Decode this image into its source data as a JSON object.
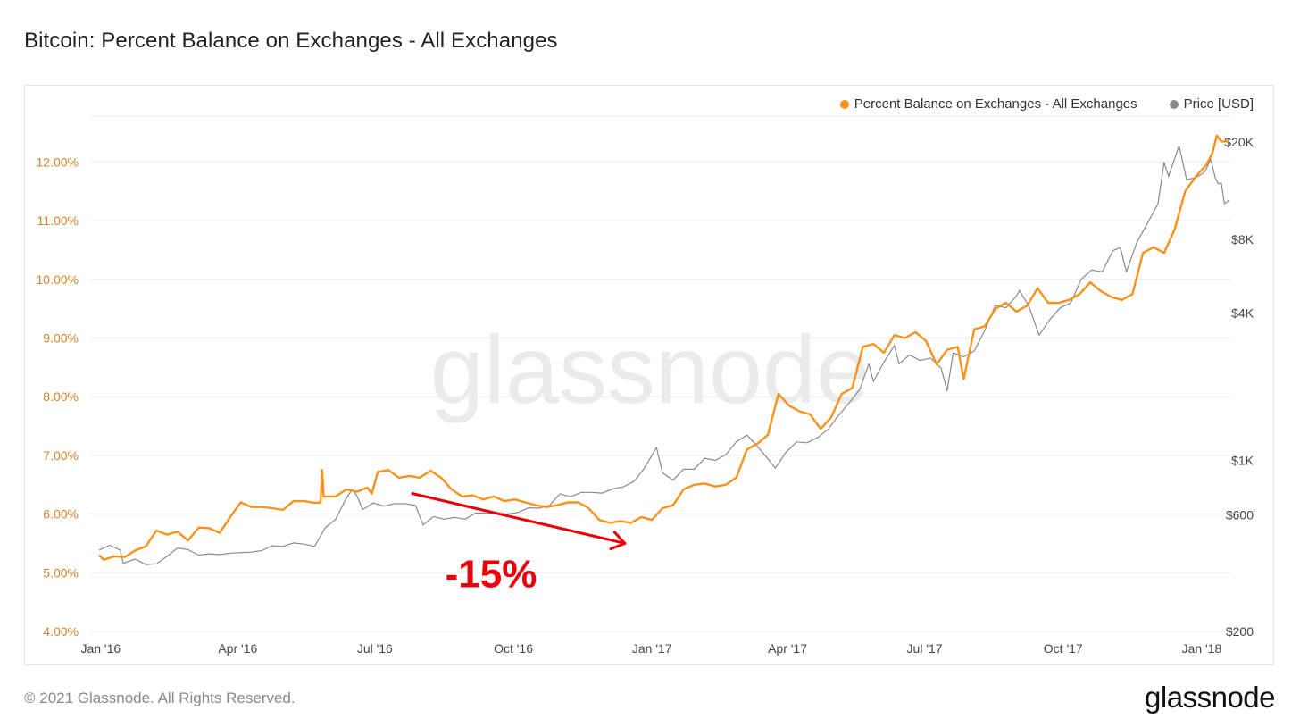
{
  "title": "Bitcoin: Percent Balance on Exchanges - All Exchanges",
  "footer": {
    "copyright": "© 2021 Glassnode. All Rights Reserved.",
    "logo": "glassnode"
  },
  "watermark": "glassnode",
  "annotation": {
    "text": "-15%",
    "color": "#e8000b"
  },
  "colors": {
    "exchange_balance": "#f7931a",
    "price": "#8a8a8a",
    "left_axis_text": "#d4822a",
    "right_axis_text": "#444444",
    "grid": "#ececec",
    "watermark": "#ebebeb"
  },
  "legend": [
    {
      "label": "Percent Balance on Exchanges - All Exchanges",
      "color": "#f7931a"
    },
    {
      "label": "Price [USD]",
      "color": "#8a8a8a"
    }
  ],
  "chart_data": {
    "type": "line",
    "title": "Bitcoin: Percent Balance on Exchanges - All Exchanges",
    "x_range": [
      "2015-12-25",
      "2018-01-20"
    ],
    "x_ticks": [
      {
        "date": "2016-01-01",
        "label": "Jan '16"
      },
      {
        "date": "2016-04-01",
        "label": "Apr '16"
      },
      {
        "date": "2016-07-01",
        "label": "Jul '16"
      },
      {
        "date": "2016-10-01",
        "label": "Oct '16"
      },
      {
        "date": "2017-01-01",
        "label": "Jan '17"
      },
      {
        "date": "2017-04-01",
        "label": "Apr '17"
      },
      {
        "date": "2017-07-01",
        "label": "Jul '17"
      },
      {
        "date": "2017-10-01",
        "label": "Oct '17"
      },
      {
        "date": "2018-01-01",
        "label": "Jan '18"
      }
    ],
    "y_left": {
      "unit": "percent",
      "range": [
        4.0,
        12.95
      ],
      "ticks": [
        4,
        5,
        6,
        7,
        8,
        9,
        10,
        11,
        12
      ],
      "tick_labels": [
        "4.00%",
        "5.00%",
        "6.00%",
        "7.00%",
        "8.00%",
        "9.00%",
        "10.00%",
        "11.00%",
        "12.00%"
      ]
    },
    "y_right": {
      "unit": "USD",
      "scale": "log",
      "range": [
        200,
        28000
      ],
      "ticks": [
        {
          "value": 200,
          "label": "$200"
        },
        {
          "value": 600,
          "label": "$600"
        },
        {
          "value": 1000,
          "label": "$1K"
        },
        {
          "value": 4000,
          "label": "$4K"
        },
        {
          "value": 8000,
          "label": "$8K"
        },
        {
          "value": 20000,
          "label": "$20K"
        }
      ]
    },
    "grid": true,
    "legend_position": "top-right",
    "series": [
      {
        "name": "Percent Balance on Exchanges - All Exchanges",
        "axis": "left",
        "points": [
          [
            "2015-12-31",
            5.3
          ],
          [
            "2016-01-03",
            5.22
          ],
          [
            "2016-01-10",
            5.28
          ],
          [
            "2016-01-17",
            5.27
          ],
          [
            "2016-01-24",
            5.38
          ],
          [
            "2016-01-31",
            5.45
          ],
          [
            "2016-02-07",
            5.72
          ],
          [
            "2016-02-14",
            5.65
          ],
          [
            "2016-02-21",
            5.7
          ],
          [
            "2016-02-28",
            5.55
          ],
          [
            "2016-03-06",
            5.77
          ],
          [
            "2016-03-13",
            5.76
          ],
          [
            "2016-03-20",
            5.68
          ],
          [
            "2016-03-27",
            5.95
          ],
          [
            "2016-04-03",
            6.2
          ],
          [
            "2016-04-10",
            6.12
          ],
          [
            "2016-04-17",
            6.12
          ],
          [
            "2016-04-24",
            6.1
          ],
          [
            "2016-05-01",
            6.07
          ],
          [
            "2016-05-08",
            6.22
          ],
          [
            "2016-05-15",
            6.22
          ],
          [
            "2016-05-22",
            6.19
          ],
          [
            "2016-05-26",
            6.2
          ],
          [
            "2016-05-27",
            6.75
          ],
          [
            "2016-05-28",
            6.3
          ],
          [
            "2016-06-05",
            6.3
          ],
          [
            "2016-06-12",
            6.42
          ],
          [
            "2016-06-19",
            6.38
          ],
          [
            "2016-06-26",
            6.45
          ],
          [
            "2016-06-29",
            6.35
          ],
          [
            "2016-07-03",
            6.72
          ],
          [
            "2016-07-10",
            6.75
          ],
          [
            "2016-07-17",
            6.62
          ],
          [
            "2016-07-24",
            6.65
          ],
          [
            "2016-07-31",
            6.62
          ],
          [
            "2016-08-07",
            6.74
          ],
          [
            "2016-08-14",
            6.62
          ],
          [
            "2016-08-21",
            6.42
          ],
          [
            "2016-08-28",
            6.3
          ],
          [
            "2016-09-04",
            6.32
          ],
          [
            "2016-09-11",
            6.25
          ],
          [
            "2016-09-18",
            6.3
          ],
          [
            "2016-09-25",
            6.22
          ],
          [
            "2016-10-02",
            6.25
          ],
          [
            "2016-10-09",
            6.2
          ],
          [
            "2016-10-16",
            6.15
          ],
          [
            "2016-10-23",
            6.12
          ],
          [
            "2016-10-30",
            6.15
          ],
          [
            "2016-11-06",
            6.2
          ],
          [
            "2016-11-13",
            6.2
          ],
          [
            "2016-11-20",
            6.1
          ],
          [
            "2016-11-27",
            5.9
          ],
          [
            "2016-12-04",
            5.85
          ],
          [
            "2016-12-11",
            5.88
          ],
          [
            "2016-12-18",
            5.85
          ],
          [
            "2016-12-25",
            5.95
          ],
          [
            "2017-01-01",
            5.9
          ],
          [
            "2017-01-08",
            6.1
          ],
          [
            "2017-01-15",
            6.15
          ],
          [
            "2017-01-22",
            6.42
          ],
          [
            "2017-01-29",
            6.5
          ],
          [
            "2017-02-05",
            6.52
          ],
          [
            "2017-02-12",
            6.47
          ],
          [
            "2017-02-19",
            6.5
          ],
          [
            "2017-02-26",
            6.62
          ],
          [
            "2017-03-05",
            7.1
          ],
          [
            "2017-03-12",
            7.2
          ],
          [
            "2017-03-19",
            7.35
          ],
          [
            "2017-03-26",
            8.05
          ],
          [
            "2017-04-02",
            7.85
          ],
          [
            "2017-04-09",
            7.75
          ],
          [
            "2017-04-16",
            7.7
          ],
          [
            "2017-04-23",
            7.45
          ],
          [
            "2017-04-30",
            7.65
          ],
          [
            "2017-05-07",
            8.05
          ],
          [
            "2017-05-14",
            8.15
          ],
          [
            "2017-05-21",
            8.85
          ],
          [
            "2017-05-28",
            8.9
          ],
          [
            "2017-06-04",
            8.75
          ],
          [
            "2017-06-11",
            9.05
          ],
          [
            "2017-06-18",
            9.0
          ],
          [
            "2017-06-25",
            9.1
          ],
          [
            "2017-07-02",
            8.95
          ],
          [
            "2017-07-09",
            8.55
          ],
          [
            "2017-07-16",
            8.8
          ],
          [
            "2017-07-23",
            8.85
          ],
          [
            "2017-07-27",
            8.3
          ],
          [
            "2017-08-03",
            9.15
          ],
          [
            "2017-08-10",
            9.2
          ],
          [
            "2017-08-17",
            9.5
          ],
          [
            "2017-08-24",
            9.6
          ],
          [
            "2017-08-31",
            9.45
          ],
          [
            "2017-09-07",
            9.55
          ],
          [
            "2017-09-14",
            9.85
          ],
          [
            "2017-09-21",
            9.6
          ],
          [
            "2017-09-28",
            9.6
          ],
          [
            "2017-10-05",
            9.65
          ],
          [
            "2017-10-12",
            9.75
          ],
          [
            "2017-10-19",
            9.95
          ],
          [
            "2017-10-26",
            9.8
          ],
          [
            "2017-11-02",
            9.7
          ],
          [
            "2017-11-09",
            9.65
          ],
          [
            "2017-11-16",
            9.75
          ],
          [
            "2017-11-23",
            10.45
          ],
          [
            "2017-11-30",
            10.55
          ],
          [
            "2017-12-07",
            10.45
          ],
          [
            "2017-12-14",
            10.85
          ],
          [
            "2017-12-21",
            11.5
          ],
          [
            "2017-12-28",
            11.75
          ],
          [
            "2018-01-04",
            11.95
          ],
          [
            "2018-01-08",
            12.15
          ],
          [
            "2018-01-11",
            12.45
          ],
          [
            "2018-01-14",
            12.35
          ],
          [
            "2018-01-19",
            12.35
          ]
        ]
      },
      {
        "name": "Price [USD]",
        "axis": "right",
        "points": [
          [
            "2015-12-31",
            430
          ],
          [
            "2016-01-07",
            450
          ],
          [
            "2016-01-14",
            430
          ],
          [
            "2016-01-16",
            380
          ],
          [
            "2016-01-24",
            395
          ],
          [
            "2016-01-31",
            375
          ],
          [
            "2016-02-07",
            378
          ],
          [
            "2016-02-14",
            405
          ],
          [
            "2016-02-21",
            438
          ],
          [
            "2016-02-28",
            432
          ],
          [
            "2016-03-06",
            410
          ],
          [
            "2016-03-13",
            415
          ],
          [
            "2016-03-20",
            412
          ],
          [
            "2016-03-27",
            418
          ],
          [
            "2016-04-03",
            420
          ],
          [
            "2016-04-10",
            422
          ],
          [
            "2016-04-17",
            428
          ],
          [
            "2016-04-24",
            448
          ],
          [
            "2016-05-01",
            445
          ],
          [
            "2016-05-08",
            460
          ],
          [
            "2016-05-15",
            455
          ],
          [
            "2016-05-22",
            445
          ],
          [
            "2016-05-29",
            530
          ],
          [
            "2016-06-05",
            575
          ],
          [
            "2016-06-12",
            700
          ],
          [
            "2016-06-16",
            760
          ],
          [
            "2016-06-19",
            720
          ],
          [
            "2016-06-23",
            630
          ],
          [
            "2016-06-30",
            670
          ],
          [
            "2016-07-07",
            650
          ],
          [
            "2016-07-14",
            665
          ],
          [
            "2016-07-21",
            665
          ],
          [
            "2016-07-28",
            655
          ],
          [
            "2016-08-02",
            545
          ],
          [
            "2016-08-09",
            590
          ],
          [
            "2016-08-16",
            575
          ],
          [
            "2016-08-23",
            585
          ],
          [
            "2016-08-30",
            575
          ],
          [
            "2016-09-06",
            610
          ],
          [
            "2016-09-13",
            608
          ],
          [
            "2016-09-20",
            608
          ],
          [
            "2016-09-27",
            605
          ],
          [
            "2016-10-04",
            612
          ],
          [
            "2016-10-11",
            640
          ],
          [
            "2016-10-18",
            638
          ],
          [
            "2016-10-25",
            655
          ],
          [
            "2016-11-01",
            730
          ],
          [
            "2016-11-08",
            710
          ],
          [
            "2016-11-15",
            740
          ],
          [
            "2016-11-22",
            740
          ],
          [
            "2016-11-29",
            735
          ],
          [
            "2016-12-06",
            765
          ],
          [
            "2016-12-13",
            780
          ],
          [
            "2016-12-20",
            820
          ],
          [
            "2016-12-27",
            930
          ],
          [
            "2017-01-04",
            1130
          ],
          [
            "2017-01-08",
            890
          ],
          [
            "2017-01-15",
            830
          ],
          [
            "2017-01-22",
            920
          ],
          [
            "2017-01-29",
            920
          ],
          [
            "2017-02-05",
            1020
          ],
          [
            "2017-02-12",
            1000
          ],
          [
            "2017-02-19",
            1055
          ],
          [
            "2017-02-26",
            1190
          ],
          [
            "2017-03-05",
            1270
          ],
          [
            "2017-03-10",
            1180
          ],
          [
            "2017-03-17",
            1050
          ],
          [
            "2017-03-24",
            930
          ],
          [
            "2017-03-31",
            1080
          ],
          [
            "2017-04-07",
            1190
          ],
          [
            "2017-04-14",
            1180
          ],
          [
            "2017-04-21",
            1240
          ],
          [
            "2017-04-28",
            1340
          ],
          [
            "2017-05-05",
            1530
          ],
          [
            "2017-05-12",
            1720
          ],
          [
            "2017-05-19",
            1950
          ],
          [
            "2017-05-25",
            2480
          ],
          [
            "2017-05-28",
            2100
          ],
          [
            "2017-06-04",
            2520
          ],
          [
            "2017-06-11",
            2950
          ],
          [
            "2017-06-14",
            2480
          ],
          [
            "2017-06-21",
            2700
          ],
          [
            "2017-06-28",
            2560
          ],
          [
            "2017-07-05",
            2620
          ],
          [
            "2017-07-12",
            2380
          ],
          [
            "2017-07-16",
            1930
          ],
          [
            "2017-07-20",
            2750
          ],
          [
            "2017-07-27",
            2650
          ],
          [
            "2017-08-03",
            2800
          ],
          [
            "2017-08-10",
            3400
          ],
          [
            "2017-08-17",
            4300
          ],
          [
            "2017-08-24",
            4200
          ],
          [
            "2017-08-31",
            4700
          ],
          [
            "2017-09-02",
            4950
          ],
          [
            "2017-09-08",
            4300
          ],
          [
            "2017-09-15",
            3250
          ],
          [
            "2017-09-22",
            3750
          ],
          [
            "2017-09-29",
            4200
          ],
          [
            "2017-10-06",
            4400
          ],
          [
            "2017-10-13",
            5500
          ],
          [
            "2017-10-20",
            6000
          ],
          [
            "2017-10-27",
            5900
          ],
          [
            "2017-11-03",
            7200
          ],
          [
            "2017-11-08",
            7400
          ],
          [
            "2017-11-12",
            5900
          ],
          [
            "2017-11-19",
            7800
          ],
          [
            "2017-11-26",
            9300
          ],
          [
            "2017-12-03",
            11200
          ],
          [
            "2017-12-07",
            16500
          ],
          [
            "2017-12-10",
            14500
          ],
          [
            "2017-12-17",
            19300
          ],
          [
            "2017-12-22",
            14000
          ],
          [
            "2017-12-29",
            14400
          ],
          [
            "2018-01-03",
            15100
          ],
          [
            "2018-01-07",
            17000
          ],
          [
            "2018-01-10",
            14300
          ],
          [
            "2018-01-12",
            13500
          ],
          [
            "2018-01-14",
            13600
          ],
          [
            "2018-01-16",
            11200
          ],
          [
            "2018-01-18",
            11400
          ],
          [
            "2018-01-19",
            11600
          ]
        ]
      }
    ],
    "annotations": [
      {
        "type": "arrow",
        "from": [
          "2016-07-26",
          6.35
        ],
        "to": [
          "2016-12-14",
          5.5
        ],
        "color": "#e8000b"
      },
      {
        "type": "text",
        "text": "-15%",
        "at": [
          "2016-10-01",
          5.0
        ],
        "color": "#e8000b"
      }
    ]
  }
}
